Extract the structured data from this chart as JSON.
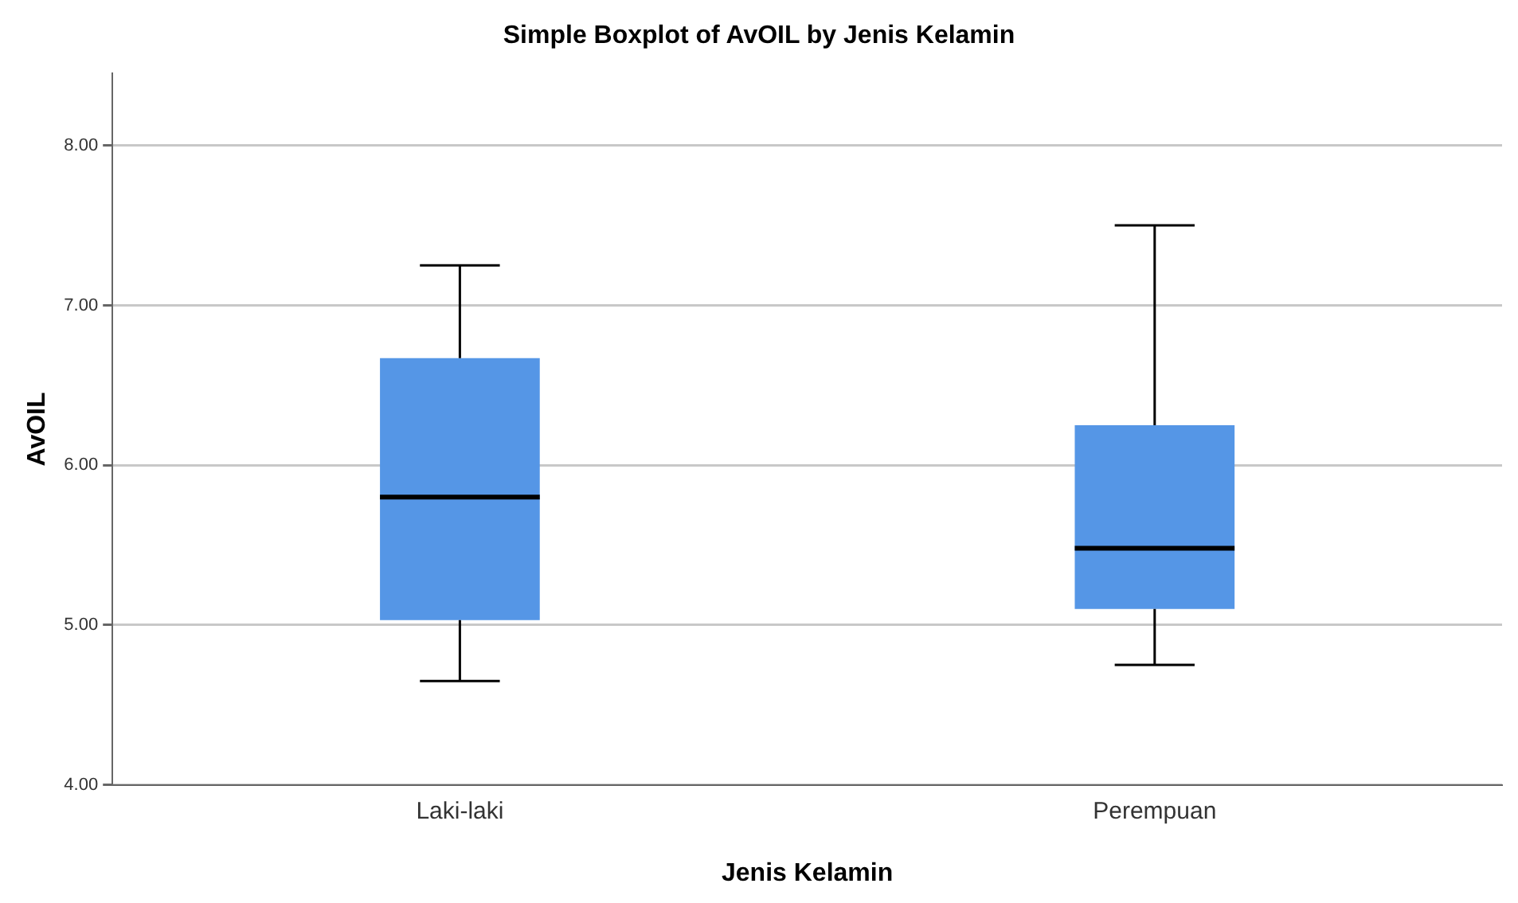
{
  "chart_data": {
    "type": "box",
    "title": "Simple Boxplot of AvOIL by Jenis Kelamin",
    "xlabel": "Jenis Kelamin",
    "ylabel": "AvOIL",
    "categories": [
      "Laki-laki",
      "Perempuan"
    ],
    "boxes": [
      {
        "low": 4.65,
        "q1": 5.03,
        "median": 5.8,
        "q3": 6.67,
        "high": 7.25
      },
      {
        "low": 4.75,
        "q1": 5.1,
        "median": 5.48,
        "q3": 6.25,
        "high": 7.5
      }
    ],
    "color": "#5596e6",
    "ylim": [
      4,
      8.45
    ],
    "yticks": [
      {
        "value": 4,
        "label": "4.00"
      },
      {
        "value": 5,
        "label": "5.00"
      },
      {
        "value": 6,
        "label": "6.00"
      },
      {
        "value": 7,
        "label": "7.00"
      },
      {
        "value": 8,
        "label": "8.00"
      }
    ],
    "grid": "y",
    "legend": false
  }
}
